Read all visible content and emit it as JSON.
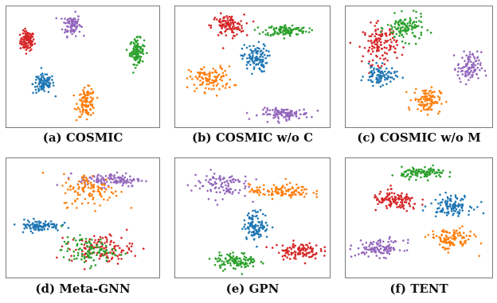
{
  "colors": {
    "blue": "#1f77b4",
    "orange": "#ff7f0e",
    "green": "#2ca02c",
    "red": "#d62728",
    "purple": "#9467bd"
  },
  "panels": [
    {
      "caption": "(a) COSMIC",
      "chart_data": {
        "type": "scatter",
        "xlim": [
          0,
          100
        ],
        "ylim": [
          0,
          100
        ],
        "clusters": [
          {
            "color": "red",
            "center": [
              12,
              73
            ],
            "spread": [
              4,
              7
            ],
            "n": 110
          },
          {
            "color": "purple",
            "center": [
              42,
              87
            ],
            "spread": [
              5,
              8
            ],
            "n": 90
          },
          {
            "color": "green",
            "center": [
              86,
              64
            ],
            "spread": [
              4,
              9
            ],
            "n": 110
          },
          {
            "color": "blue",
            "center": [
              23,
              36
            ],
            "spread": [
              6,
              7
            ],
            "n": 100
          },
          {
            "color": "orange",
            "center": [
              52,
              20
            ],
            "spread": [
              5,
              10
            ],
            "n": 110
          }
        ]
      }
    },
    {
      "caption": "(b) COSMIC w/o C",
      "chart_data": {
        "type": "scatter",
        "xlim": [
          0,
          100
        ],
        "ylim": [
          0,
          100
        ],
        "clusters": [
          {
            "color": "red",
            "center": [
              33,
              86
            ],
            "spread": [
              9,
              8
            ],
            "n": 110
          },
          {
            "color": "green",
            "center": [
              72,
              82
            ],
            "spread": [
              12,
              4
            ],
            "n": 110
          },
          {
            "color": "blue",
            "center": [
              51,
              58
            ],
            "spread": [
              7,
              10
            ],
            "n": 110
          },
          {
            "color": "orange",
            "center": [
              22,
              40
            ],
            "spread": [
              12,
              9
            ],
            "n": 110
          },
          {
            "color": "purple",
            "center": [
              71,
              10
            ],
            "spread": [
              14,
              4
            ],
            "n": 110
          }
        ]
      }
    },
    {
      "caption": "(c) COSMIC w/o M",
      "chart_data": {
        "type": "scatter",
        "xlim": [
          0,
          100
        ],
        "ylim": [
          0,
          100
        ],
        "clusters": [
          {
            "color": "red",
            "center": [
              22,
              70
            ],
            "spread": [
              10,
              14
            ],
            "n": 130
          },
          {
            "color": "green",
            "center": [
              40,
              84
            ],
            "spread": [
              11,
              9
            ],
            "n": 120
          },
          {
            "color": "blue",
            "center": [
              22,
              43
            ],
            "spread": [
              9,
              7
            ],
            "n": 90
          },
          {
            "color": "orange",
            "center": [
              55,
              22
            ],
            "spread": [
              8,
              9
            ],
            "n": 110
          },
          {
            "color": "purple",
            "center": [
              85,
              50
            ],
            "spread": [
              7,
              11
            ],
            "n": 100
          }
        ]
      }
    },
    {
      "caption": "(d) Meta-GNN",
      "chart_data": {
        "type": "scatter",
        "xlim": [
          0,
          100
        ],
        "ylim": [
          0,
          100
        ],
        "clusters": [
          {
            "color": "purple",
            "center": [
              68,
              84
            ],
            "spread": [
              18,
              5
            ],
            "n": 120
          },
          {
            "color": "orange",
            "center": [
              55,
              75
            ],
            "spread": [
              16,
              12
            ],
            "n": 110
          },
          {
            "color": "blue",
            "center": [
              20,
              44
            ],
            "spread": [
              12,
              4
            ],
            "n": 100
          },
          {
            "color": "red",
            "center": [
              62,
              24
            ],
            "spread": [
              18,
              10
            ],
            "n": 120
          },
          {
            "color": "green",
            "center": [
              53,
              22
            ],
            "spread": [
              15,
              10
            ],
            "n": 100
          }
        ]
      }
    },
    {
      "caption": "(e) GPN",
      "chart_data": {
        "type": "scatter",
        "xlim": [
          0,
          100
        ],
        "ylim": [
          0,
          100
        ],
        "clusters": [
          {
            "color": "purple",
            "center": [
              28,
              80
            ],
            "spread": [
              16,
              10
            ],
            "n": 100
          },
          {
            "color": "orange",
            "center": [
              68,
              74
            ],
            "spread": [
              17,
              5
            ],
            "n": 110
          },
          {
            "color": "blue",
            "center": [
              52,
              44
            ],
            "spread": [
              7,
              10
            ],
            "n": 110
          },
          {
            "color": "red",
            "center": [
              80,
              22
            ],
            "spread": [
              12,
              6
            ],
            "n": 110
          },
          {
            "color": "green",
            "center": [
              38,
              13
            ],
            "spread": [
              12,
              6
            ],
            "n": 110
          }
        ]
      }
    },
    {
      "caption": "(f) TENT",
      "chart_data": {
        "type": "scatter",
        "xlim": [
          0,
          100
        ],
        "ylim": [
          0,
          100
        ],
        "clusters": [
          {
            "color": "green",
            "center": [
              53,
              90
            ],
            "spread": [
              13,
              4
            ],
            "n": 110
          },
          {
            "color": "red",
            "center": [
              33,
              65
            ],
            "spread": [
              14,
              7
            ],
            "n": 120
          },
          {
            "color": "blue",
            "center": [
              72,
              62
            ],
            "spread": [
              12,
              7
            ],
            "n": 110
          },
          {
            "color": "purple",
            "center": [
              22,
              24
            ],
            "spread": [
              14,
              6
            ],
            "n": 110
          },
          {
            "color": "orange",
            "center": [
              72,
              32
            ],
            "spread": [
              13,
              8
            ],
            "n": 110
          }
        ]
      }
    }
  ]
}
